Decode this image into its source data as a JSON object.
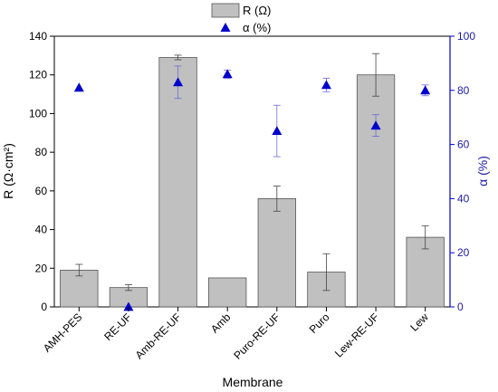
{
  "chart_data": {
    "type": "bar",
    "xlabel": "Membrane",
    "ylabel_left": "R (Ω·cm²)",
    "ylabel_right": "α (%)",
    "categories": [
      "AMH-PES",
      "RE-UF",
      "Amb-RE-UF",
      "Amb",
      "Puro-RE-UF",
      "Puro",
      "Lew-RE-UF",
      "Lew"
    ],
    "left_axis": {
      "ylim": [
        0,
        140
      ],
      "ticks": [
        "0",
        "20",
        "40",
        "60",
        "80",
        "100",
        "120",
        "140"
      ]
    },
    "right_axis": {
      "ylim": [
        0,
        100
      ],
      "ticks": [
        "0",
        "20",
        "40",
        "60",
        "80",
        "100"
      ]
    },
    "series": [
      {
        "name": "R (Ω)",
        "kind": "bar",
        "axis": "left",
        "color": "#c0c0c0",
        "values": [
          19,
          10,
          129,
          15,
          56,
          18,
          120,
          36
        ],
        "errors": [
          3,
          1.5,
          1.2,
          0,
          6.5,
          9.5,
          11,
          6
        ]
      },
      {
        "name": "α (%)",
        "kind": "scatter",
        "axis": "right",
        "color": "#0000cc",
        "values": [
          81,
          0,
          83,
          86,
          65,
          82,
          67,
          80
        ],
        "errors": [
          0,
          0,
          6,
          1.5,
          9.5,
          2.5,
          4,
          2
        ]
      }
    ],
    "legend": {
      "position": "top-center",
      "entries": [
        "R (Ω)",
        "α (%)"
      ]
    },
    "grid": false
  }
}
